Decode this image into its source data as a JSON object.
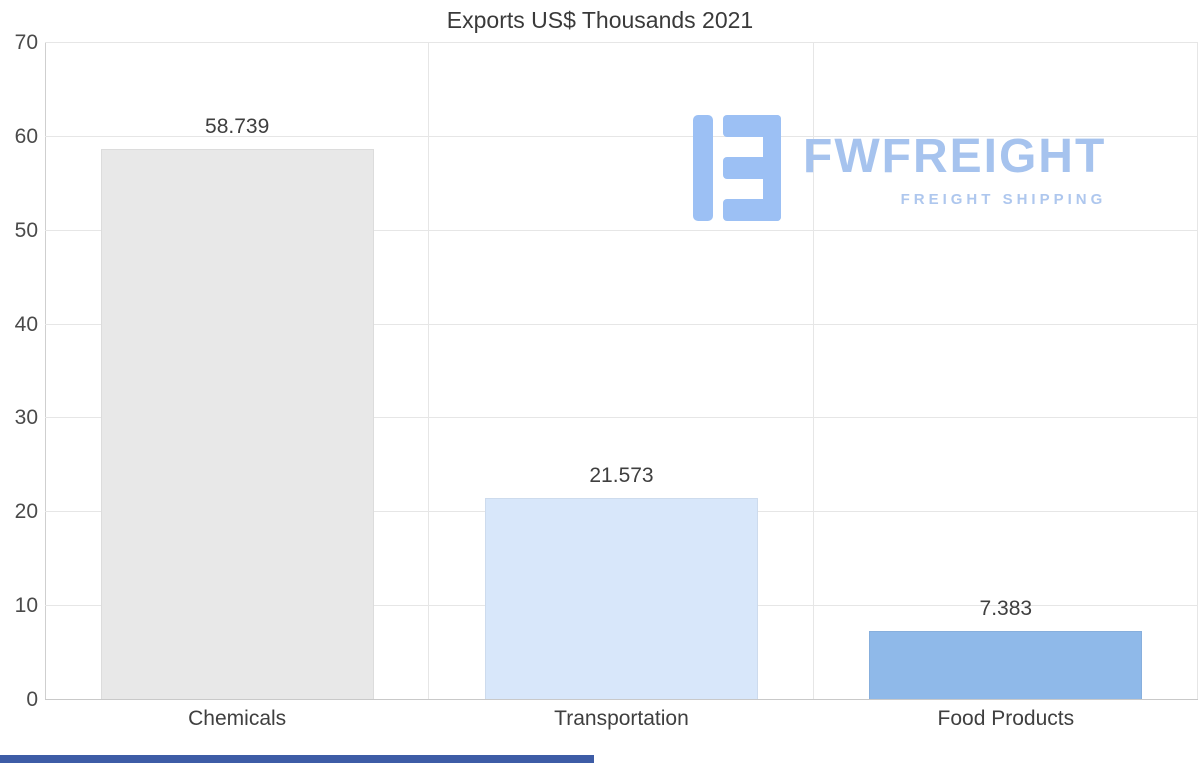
{
  "chart_data": {
    "type": "bar",
    "title": "Exports US$ Thousands 2021",
    "categories": [
      "Chemicals",
      "Transportation",
      "Food Products"
    ],
    "values": [
      58.739,
      21.573,
      7.383
    ],
    "value_labels": [
      "58.739",
      "21.573",
      "7.383"
    ],
    "bar_colors": [
      "#e8e8e8",
      "#d8e7fa",
      "#8fb9e9"
    ],
    "xlabel": "",
    "ylabel": "",
    "ylim": [
      0,
      70
    ],
    "yticks": [
      0,
      10,
      20,
      30,
      40,
      50,
      60,
      70
    ],
    "grid": true,
    "legend": "none"
  },
  "watermark": {
    "brand": "FWFREIGHT",
    "tagline": "FREIGHT SHIPPING",
    "color": "#a6c3ee"
  },
  "colors": {
    "grid": "#e6e6e6",
    "axis": "#cfcfcf",
    "text": "#3f3f3f",
    "bottom_strip": "#3d5ca6"
  }
}
